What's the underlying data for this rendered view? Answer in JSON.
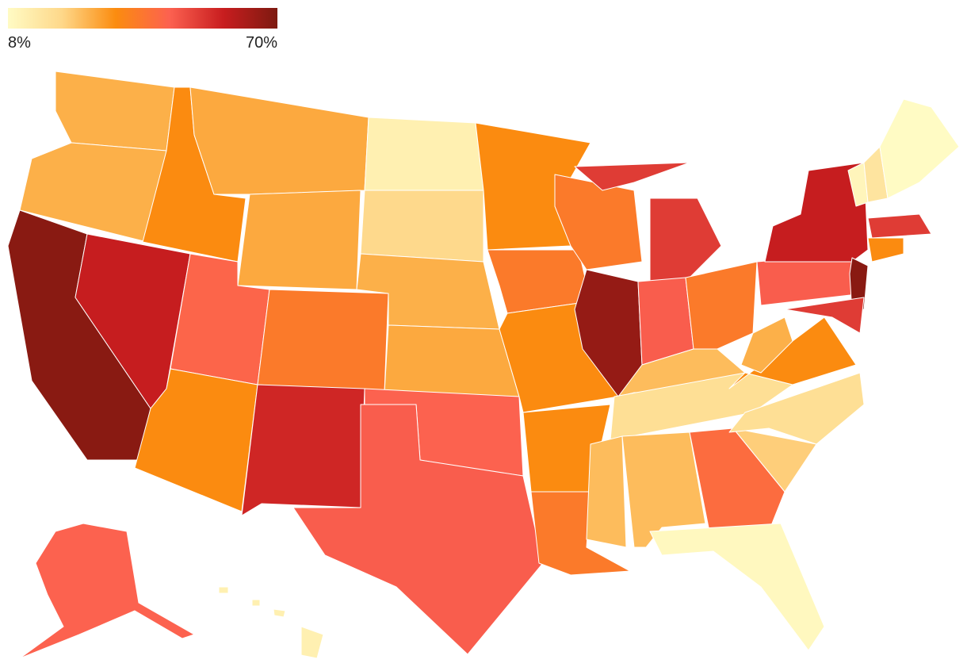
{
  "chart_data": {
    "type": "choropleth",
    "clim": [
      8,
      70
    ],
    "cticks": [
      {
        "value": 8,
        "label": "8%"
      },
      {
        "value": 70,
        "label": "70%"
      }
    ],
    "colors": [
      "#fffbc4",
      "#fed88a",
      "#fb8c0f",
      "#fc6150",
      "#c81d1f",
      "#7d1a10"
    ],
    "values": [
      27,
      27,
      68,
      58,
      33,
      28,
      28,
      44,
      33,
      38,
      56,
      12,
      20,
      27,
      28,
      45,
      46,
      33,
      38,
      33,
      33,
      38,
      38,
      66,
      52,
      46,
      38,
      25,
      18,
      25,
      25,
      42,
      9,
      22,
      18,
      33,
      27,
      46,
      58,
      68,
      52,
      10,
      16,
      8,
      52,
      33,
      45,
      12
    ]
  }
}
